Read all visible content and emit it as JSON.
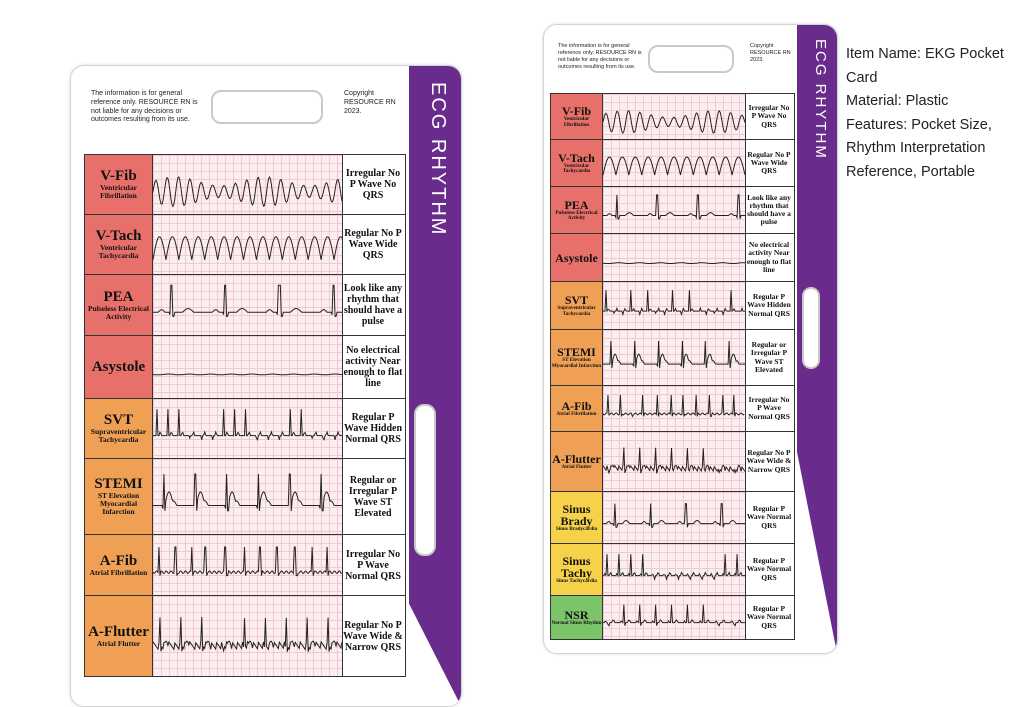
{
  "card": {
    "disclaimer": "The information is for general reference only. RESOURCE RN is not liable for any decisions or outcomes resulting from its use.",
    "copyright": "Copyright RESOURCE RN 2023.",
    "band_title": "ECG RHYTHM"
  },
  "rhythms": [
    {
      "name": "V-Fib",
      "sub": "Ventricular Fibrillation",
      "desc": "Irregular No P Wave No QRS",
      "color": "#e8706a",
      "wave": "vfib"
    },
    {
      "name": "V-Tach",
      "sub": "Ventricular Tachycardia",
      "desc": "Regular No P Wave Wide QRS",
      "color": "#e8706a",
      "wave": "vtach"
    },
    {
      "name": "PEA",
      "sub": "Pulseless Electrical Activity",
      "desc": "Look like any rhythm that should have a pulse",
      "color": "#e8706a",
      "wave": "pea"
    },
    {
      "name": "Asystole",
      "sub": "",
      "desc": "No electrical activity Near enough to flat line",
      "color": "#e8706a",
      "wave": "flat"
    },
    {
      "name": "SVT",
      "sub": "Supraventricular Tachycardia",
      "desc": "Regular P Wave Hidden Normal QRS",
      "color": "#f0a055",
      "wave": "svt"
    },
    {
      "name": "STEMI",
      "sub": "ST Elevation Myocardial Infarction",
      "desc": "Regular or Irregular P Wave ST Elevated",
      "color": "#f0a055",
      "wave": "stemi"
    },
    {
      "name": "A-Fib",
      "sub": "Atrial Fibrillation",
      "desc": "Irregular No P Wave Normal QRS",
      "color": "#f0a055",
      "wave": "afib"
    },
    {
      "name": "A-Flutter",
      "sub": "Atrial Flutter",
      "desc": "Regular No P Wave Wide & Narrow QRS",
      "color": "#f0a055",
      "wave": "aflutter"
    },
    {
      "name": "Sinus Brady",
      "sub": "Sinus Bradycardia",
      "desc": "Regular P Wave Normal QRS",
      "color": "#f5d24a",
      "wave": "brady"
    },
    {
      "name": "Sinus Tachy",
      "sub": "Sinus Tachycardia",
      "desc": "Regular P Wave Normal QRS",
      "color": "#f5d24a",
      "wave": "tachy"
    },
    {
      "name": "NSR",
      "sub": "Normal Sinus Rhythm",
      "desc": "Regular P Wave Normal QRS",
      "color": "#7cc46a",
      "wave": "nsr"
    }
  ],
  "large_card_visible_rows": 8,
  "product_info": {
    "item_name": "Item Name: EKG Pocket Card",
    "material": "Material: Plastic",
    "features": "Features: Pocket Size, Rhythm Interpretation Reference, Portable"
  }
}
